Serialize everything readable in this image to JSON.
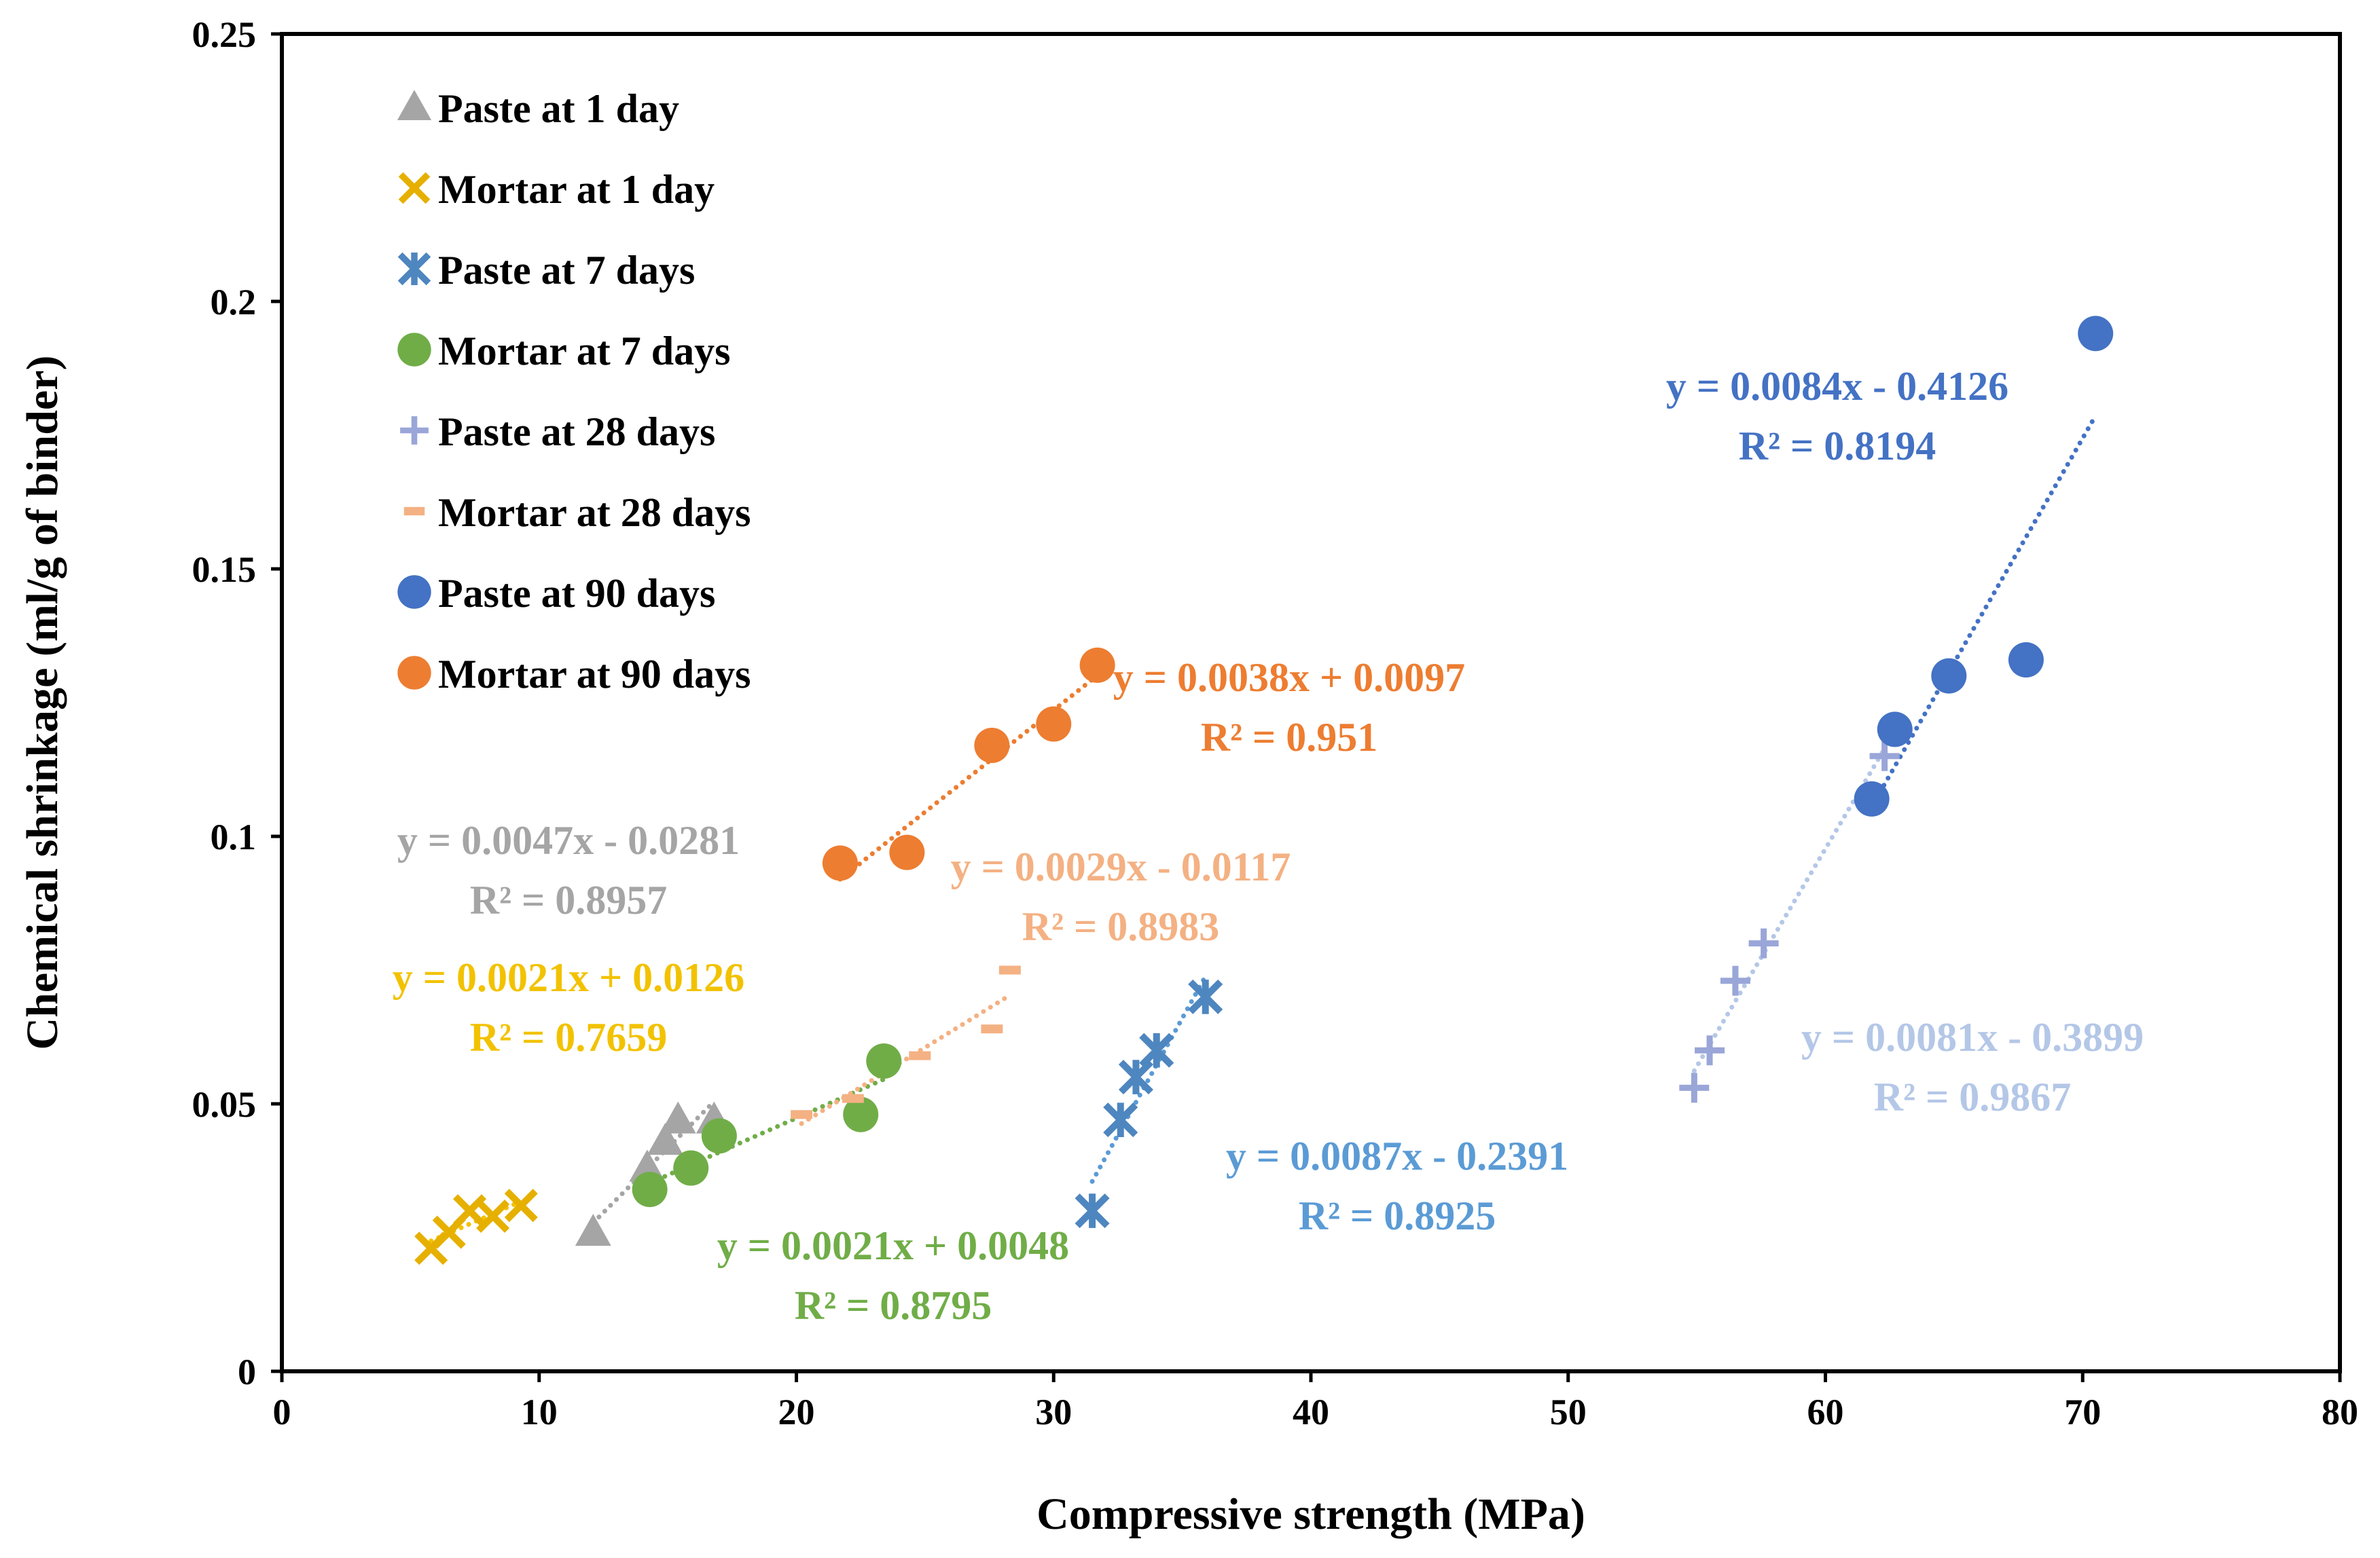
{
  "chart_data": {
    "type": "scatter",
    "title": "",
    "xlabel": "Compressive strength (MPa)",
    "ylabel": "Chemical shrinkage (ml/g of binder)",
    "xlim": [
      0,
      80
    ],
    "ylim": [
      0,
      0.25
    ],
    "x_ticks": [
      0,
      10,
      20,
      30,
      40,
      50,
      60,
      70,
      80
    ],
    "y_ticks": [
      0,
      0.05,
      0.1,
      0.15,
      0.2,
      0.25
    ],
    "x_tick_labels": [
      "0",
      "10",
      "20",
      "30",
      "40",
      "50",
      "60",
      "70",
      "80"
    ],
    "y_tick_labels": [
      "0",
      "0.05",
      "0.1",
      "0.15",
      "0.2",
      "0.25"
    ],
    "legend_position": "top-left",
    "series": [
      {
        "name": "Paste at 1 day",
        "marker": "triangle",
        "color": "#a5a5a5",
        "trend_color": "#a5a5a5",
        "x": [
          12.1,
          14.2,
          14.9,
          15.4,
          16.8
        ],
        "y": [
          0.026,
          0.038,
          0.043,
          0.047,
          0.047
        ],
        "equation": "y = 0.0047x - 0.0281",
        "r2": "R² = 0.8957"
      },
      {
        "name": "Mortar at 1 day",
        "marker": "x",
        "color": "#e6b000",
        "trend_color": "#f2c200",
        "x": [
          5.8,
          6.5,
          7.3,
          8.2,
          9.3
        ],
        "y": [
          0.023,
          0.026,
          0.03,
          0.029,
          0.031
        ],
        "equation": "y = 0.0021x + 0.0126",
        "r2": "R² = 0.7659"
      },
      {
        "name": "Paste at 7 days",
        "marker": "star",
        "color": "#4e86c0",
        "trend_color": "#5b9bd5",
        "x": [
          31.5,
          32.6,
          33.2,
          34.0,
          35.9
        ],
        "y": [
          0.03,
          0.047,
          0.055,
          0.06,
          0.07
        ],
        "equation": "y = 0.0087x - 0.2391",
        "r2": "R² = 0.8925"
      },
      {
        "name": "Mortar at 7 days",
        "marker": "circle",
        "color": "#70ad47",
        "trend_color": "#70ad47",
        "x": [
          14.3,
          15.9,
          17.0,
          22.5,
          23.4
        ],
        "y": [
          0.034,
          0.038,
          0.044,
          0.048,
          0.058
        ],
        "equation": "y = 0.0021x + 0.0048",
        "r2": "R² = 0.8795"
      },
      {
        "name": "Paste at 28 days",
        "marker": "plus",
        "color": "#9aa6d8",
        "trend_color": "#b4c7e7",
        "x": [
          54.9,
          55.5,
          56.5,
          57.6,
          62.3
        ],
        "y": [
          0.053,
          0.06,
          0.073,
          0.08,
          0.115
        ],
        "equation": "y = 0.0081x - 0.3899",
        "r2": "R² = 0.9867"
      },
      {
        "name": "Mortar at 28 days",
        "marker": "dash",
        "color": "#f4b183",
        "trend_color": "#f4b183",
        "x": [
          20.2,
          22.2,
          24.8,
          27.6,
          28.3
        ],
        "y": [
          0.048,
          0.051,
          0.059,
          0.064,
          0.075
        ],
        "equation": "y = 0.0029x - 0.0117",
        "r2": "R² = 0.8983"
      },
      {
        "name": "Paste at 90 days",
        "marker": "circle",
        "color": "#4472c4",
        "trend_color": "#4472c4",
        "x": [
          61.8,
          62.7,
          64.8,
          67.8,
          70.5
        ],
        "y": [
          0.107,
          0.12,
          0.13,
          0.133,
          0.194
        ],
        "equation": "y = 0.0084x - 0.4126",
        "r2": "R² = 0.8194"
      },
      {
        "name": "Mortar at 90 days",
        "marker": "circle",
        "color": "#ed7d31",
        "trend_color": "#ed7d31",
        "x": [
          21.7,
          24.3,
          27.6,
          30.0,
          31.7
        ],
        "y": [
          0.095,
          0.097,
          0.117,
          0.121,
          0.132
        ],
        "equation": "y = 0.0038x + 0.0097",
        "r2": "R² = 0.951"
      }
    ]
  }
}
